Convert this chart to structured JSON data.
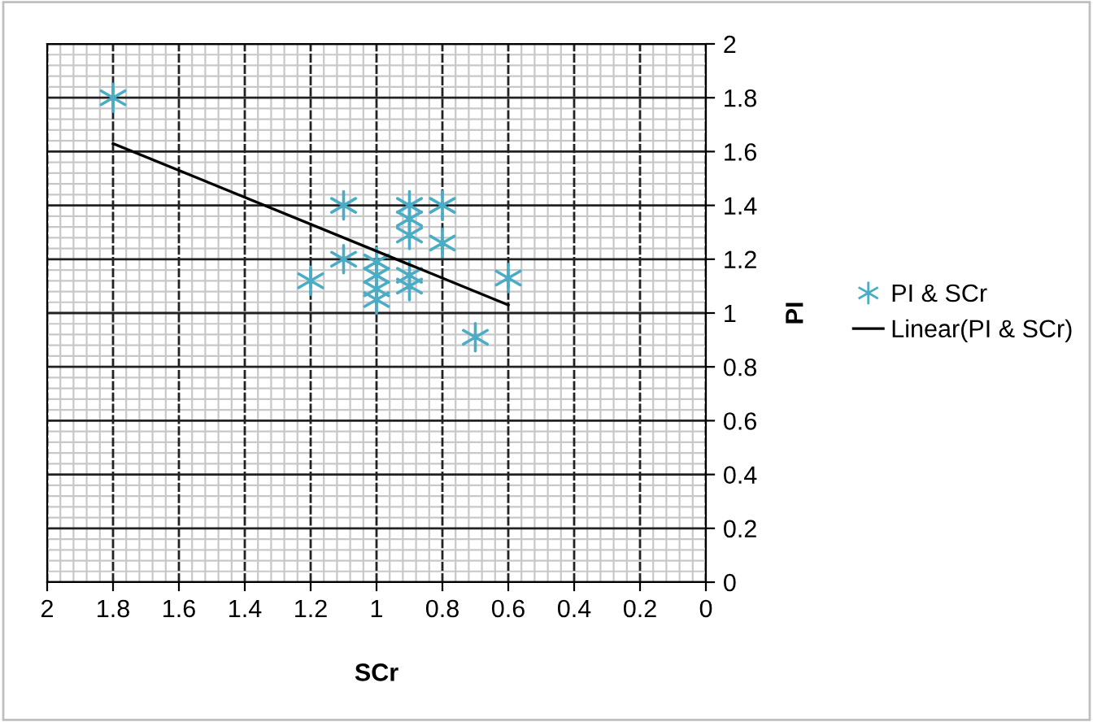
{
  "chart_data": {
    "type": "scatter",
    "xlabel": "SCr",
    "ylabel": "PI",
    "xlim": [
      2,
      0
    ],
    "xticks": [
      2,
      1.8,
      1.6,
      1.4,
      1.2,
      1,
      0.8,
      0.6,
      0.4,
      0.2,
      0
    ],
    "ylim": [
      0,
      2
    ],
    "yticks": [
      0,
      0.2,
      0.4,
      0.6,
      0.8,
      1,
      1.2,
      1.4,
      1.6,
      1.8,
      2
    ],
    "grid": true,
    "legend": "right",
    "series": [
      {
        "name": "PI & SCr",
        "marker": "cross",
        "color": "#4bacc6",
        "x": [
          1.8,
          1.1,
          1.2,
          1.1,
          1.0,
          1.0,
          1.0,
          1.0,
          0.9,
          0.9,
          0.9,
          0.9,
          0.9,
          0.8,
          0.8,
          0.7,
          0.6
        ],
        "values": [
          1.8,
          1.4,
          1.12,
          1.2,
          1.19,
          1.14,
          1.09,
          1.05,
          1.4,
          1.35,
          1.29,
          1.14,
          1.1,
          1.4,
          1.26,
          0.91,
          1.13
        ]
      },
      {
        "name": "Linear(PI & SCr)",
        "type": "line",
        "marker": "none",
        "color": "#000000",
        "x": [
          1.8,
          0.6
        ],
        "values": [
          1.63,
          1.03
        ]
      }
    ]
  }
}
